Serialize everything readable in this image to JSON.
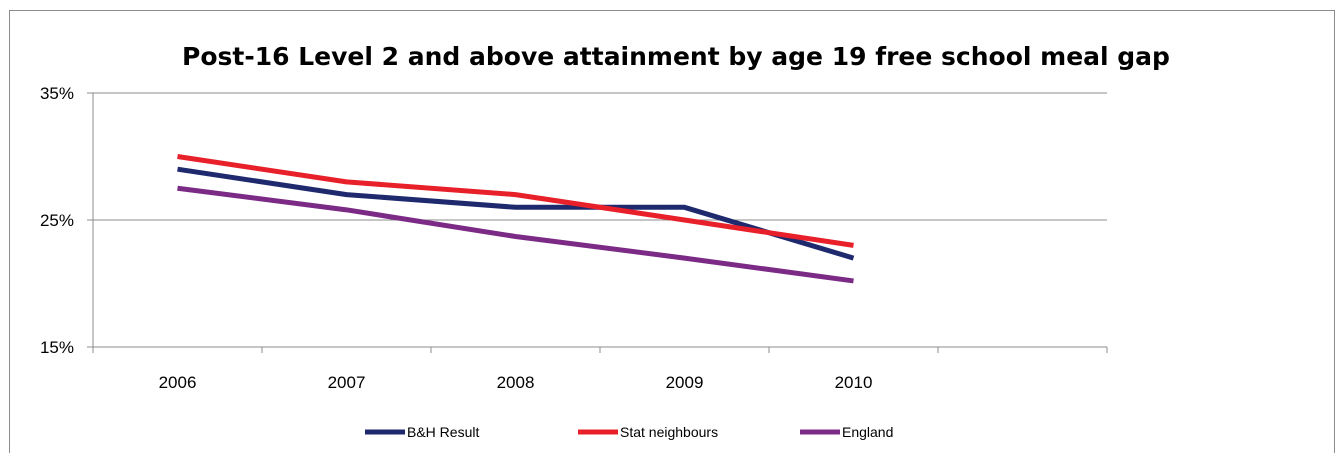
{
  "chart_data": {
    "type": "line",
    "title": "Post-16 Level 2 and above attainment by age 19 free school meal gap",
    "xlabel": "",
    "ylabel": "",
    "categories": [
      "2006",
      "2007",
      "2008",
      "2009",
      "2010"
    ],
    "ylim": [
      15,
      35
    ],
    "yticks": [
      "15%",
      "25%",
      "35%"
    ],
    "yticks_values": [
      15,
      25,
      35
    ],
    "grid": true,
    "legend_position": "bottom",
    "series": [
      {
        "name": "B&H Result",
        "color": "#1f2a6e",
        "values": [
          29,
          27,
          26,
          26,
          22
        ]
      },
      {
        "name": "Stat neighbours",
        "color": "#e8202a",
        "values": [
          30,
          28,
          27,
          25,
          23
        ]
      },
      {
        "name": "England",
        "color": "#7b2b86",
        "values": [
          27.5,
          25.8,
          23.7,
          22,
          20.2
        ]
      }
    ]
  }
}
